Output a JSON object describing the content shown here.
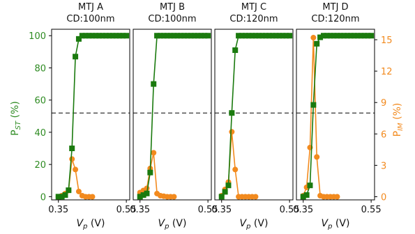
{
  "colors": {
    "pst": "#1a7a0e",
    "pim": "#f28a1e",
    "frame": "#000000",
    "threshold": "#000000"
  },
  "chart_data": {
    "type": "line",
    "left_axis": {
      "label_main": "P",
      "label_sub": "ST",
      "label_unit": " (%)",
      "range": [
        -2,
        104
      ],
      "ticks": [
        "0",
        "20",
        "40",
        "60",
        "80",
        "100"
      ],
      "tick_values": [
        0,
        20,
        40,
        60,
        80,
        100
      ]
    },
    "right_axis": {
      "label_main": "P",
      "label_sub": "IM",
      "label_unit": " (%)",
      "range": [
        -0.3,
        16
      ],
      "ticks": [
        "0",
        "3",
        "6",
        "9",
        "12",
        "15"
      ],
      "tick_values": [
        0,
        3,
        6,
        9,
        12,
        15
      ]
    },
    "x_axis": {
      "label_main": "V",
      "label_sub": "p",
      "label_unit": " (V)",
      "range": [
        0.33,
        0.56
      ],
      "ticks": [
        "0.35",
        "0.55"
      ],
      "tick_values": [
        0.35,
        0.55
      ]
    },
    "threshold_line_y": 52,
    "panels": [
      {
        "title_line1": "MTJ A",
        "title_line2": "CD:100nm",
        "x": [
          0.35,
          0.36,
          0.37,
          0.38,
          0.39,
          0.4,
          0.41,
          0.42,
          0.43,
          0.44,
          0.45,
          0.46,
          0.47,
          0.48,
          0.49,
          0.5,
          0.51,
          0.52,
          0.53,
          0.54,
          0.55
        ],
        "pst": [
          0,
          0,
          1,
          4,
          30,
          87,
          98,
          100,
          100,
          100,
          100,
          100,
          100,
          100,
          100,
          100,
          100,
          100,
          100,
          100,
          100
        ],
        "x_pim": [
          0.35,
          0.36,
          0.37,
          0.38,
          0.39,
          0.4,
          0.41,
          0.42,
          0.43,
          0.44,
          0.45
        ],
        "pim": [
          0,
          0.1,
          0.3,
          0.6,
          3.6,
          2.6,
          0.5,
          0.1,
          0,
          0,
          0
        ]
      },
      {
        "title_line1": "MTJ B",
        "title_line2": "CD:100nm",
        "x": [
          0.35,
          0.36,
          0.37,
          0.38,
          0.39,
          0.4,
          0.41,
          0.42,
          0.43,
          0.44,
          0.45,
          0.46,
          0.47,
          0.48,
          0.49,
          0.5,
          0.51,
          0.52,
          0.53,
          0.54,
          0.55
        ],
        "pst": [
          0,
          1,
          2,
          15,
          70,
          100,
          100,
          100,
          100,
          100,
          100,
          100,
          100,
          100,
          100,
          100,
          100,
          100,
          100,
          100,
          100
        ],
        "x_pim": [
          0.35,
          0.36,
          0.37,
          0.38,
          0.39,
          0.4,
          0.41,
          0.42,
          0.43,
          0.44,
          0.45
        ],
        "pim": [
          0.4,
          0.6,
          0.8,
          2.7,
          4.2,
          0.3,
          0.1,
          0.05,
          0,
          0,
          0
        ]
      },
      {
        "title_line1": "MTJ C",
        "title_line2": "CD:120nm",
        "x": [
          0.35,
          0.36,
          0.37,
          0.38,
          0.39,
          0.4,
          0.41,
          0.42,
          0.43,
          0.44,
          0.45,
          0.46,
          0.47,
          0.48,
          0.49,
          0.5,
          0.51,
          0.52,
          0.53,
          0.54,
          0.55
        ],
        "pst": [
          0,
          3,
          7,
          52,
          91,
          100,
          100,
          100,
          100,
          100,
          100,
          100,
          100,
          100,
          100,
          100,
          100,
          100,
          100,
          100,
          100
        ],
        "x_pim": [
          0.35,
          0.36,
          0.37,
          0.38,
          0.39,
          0.4,
          0.41,
          0.42,
          0.43,
          0.44,
          0.45
        ],
        "pim": [
          0.1,
          0.7,
          1.4,
          6.2,
          2.6,
          0,
          0,
          0,
          0,
          0,
          0
        ]
      },
      {
        "title_line1": "MTJ D",
        "title_line2": "CD:120nm",
        "x": [
          0.35,
          0.36,
          0.37,
          0.38,
          0.39,
          0.4,
          0.41,
          0.42,
          0.43,
          0.44,
          0.45,
          0.46,
          0.47,
          0.48,
          0.49,
          0.5,
          0.51,
          0.52,
          0.53,
          0.54,
          0.55
        ],
        "pst": [
          0,
          1,
          7,
          57,
          95,
          99,
          100,
          100,
          100,
          100,
          100,
          100,
          100,
          100,
          100,
          100,
          100,
          100,
          100,
          100,
          100
        ],
        "x_pim": [
          0.35,
          0.36,
          0.37,
          0.38,
          0.39,
          0.4,
          0.41,
          0.42,
          0.43,
          0.44,
          0.45
        ],
        "pim": [
          0.1,
          0.9,
          4.7,
          15.2,
          3.8,
          0.1,
          0,
          0,
          0,
          0,
          0
        ]
      }
    ]
  }
}
